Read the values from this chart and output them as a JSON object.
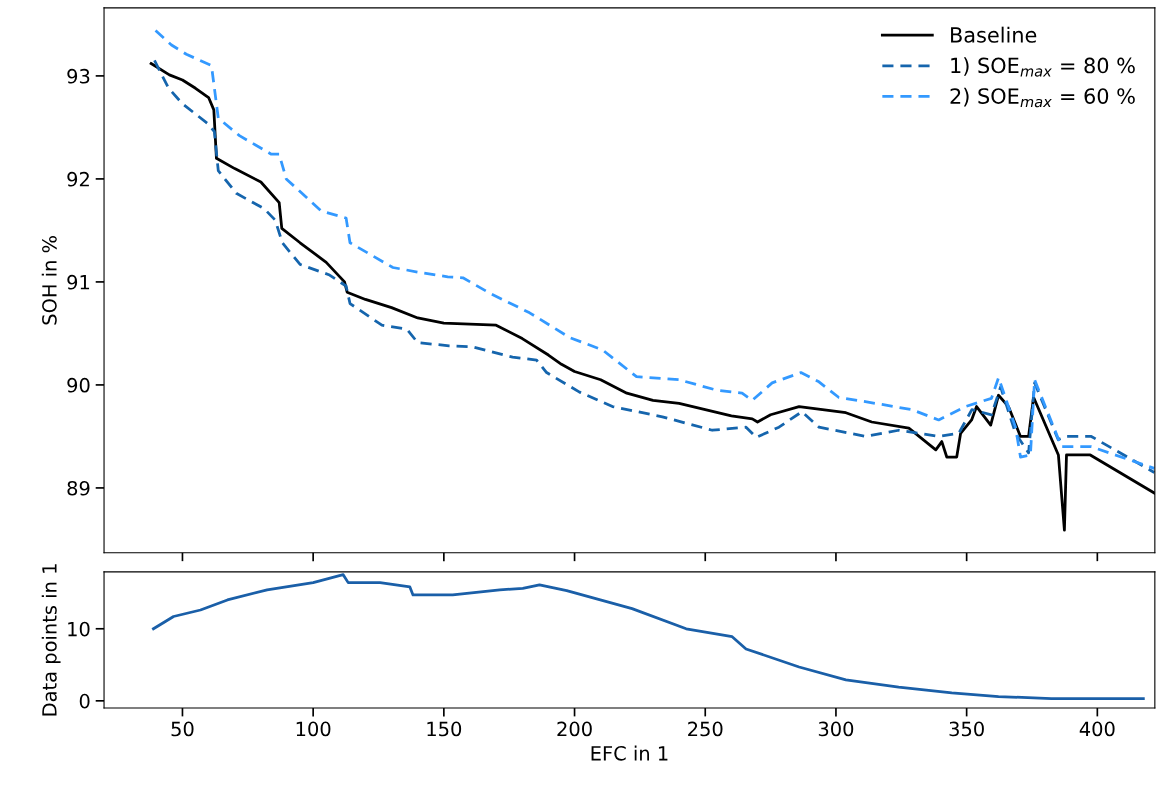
{
  "chart_data": [
    {
      "type": "line",
      "ylabel": "SOH in %",
      "xlim": [
        20,
        422
      ],
      "xticks": [
        50,
        100,
        150,
        200,
        250,
        300,
        350,
        400
      ],
      "ylim": [
        88.37,
        93.66
      ],
      "yticks": [
        89,
        90,
        91,
        92,
        93
      ],
      "tick_labels": "y",
      "grid": false,
      "legend": "top right",
      "marker": "none",
      "series": [
        {
          "name": "Baseline",
          "color": "#000000",
          "line_style": "solid",
          "x": [
            38,
            45,
            50,
            55,
            60,
            62,
            63,
            70,
            80,
            87,
            88,
            95,
            105,
            112,
            113,
            120,
            130,
            140,
            150,
            170,
            180,
            190,
            195,
            200,
            210,
            220,
            230,
            240,
            250,
            260,
            268,
            270,
            275,
            285.9,
            303.8,
            313.7,
            327.9,
            338.2,
            340.5,
            342.4,
            346.2,
            347.7,
            351.9,
            353.8,
            359.2,
            362.2,
            366,
            370.6,
            373.7,
            375.6,
            385.1,
            387.4,
            388.2,
            397.3,
            421.8
          ],
          "values": [
            93.12,
            93.01,
            92.96,
            92.88,
            92.79,
            92.67,
            92.2,
            92.1,
            91.97,
            91.77,
            91.52,
            91.38,
            91.19,
            91.0,
            90.9,
            90.83,
            90.75,
            90.65,
            90.6,
            90.58,
            90.45,
            90.29,
            90.2,
            90.13,
            90.05,
            89.92,
            89.85,
            89.82,
            89.76,
            89.7,
            89.67,
            89.64,
            89.71,
            89.79,
            89.73,
            89.64,
            89.58,
            89.37,
            89.45,
            89.3,
            89.3,
            89.53,
            89.66,
            89.79,
            89.61,
            89.9,
            89.79,
            89.5,
            89.5,
            89.88,
            89.32,
            88.59,
            89.32,
            89.32,
            88.95
          ]
        },
        {
          "name": "1) SOE$_{max}$ = 80 %",
          "color": "#1565ad",
          "line_style": "dashed",
          "x": [
            39.3,
            44.7,
            50,
            59.5,
            62.2,
            63.7,
            70.6,
            81.3,
            85.5,
            88.2,
            95,
            106,
            112.6,
            114.1,
            126.3,
            135.9,
            140,
            152,
            161,
            176.3,
            185.5,
            189.3,
            201.9,
            214.5,
            233.6,
            252.7,
            265.6,
            269.5,
            278.2,
            287,
            293.5,
            311.5,
            324,
            339.3,
            347,
            352,
            359.5,
            363,
            368.7,
            373.7,
            376,
            385,
            387.8,
            397.7,
            421.8
          ],
          "values": [
            93.15,
            92.88,
            92.73,
            92.54,
            92.46,
            92.08,
            91.86,
            91.71,
            91.6,
            91.38,
            91.17,
            91.07,
            90.96,
            90.79,
            90.58,
            90.54,
            90.41,
            90.38,
            90.37,
            90.27,
            90.24,
            90.12,
            89.93,
            89.79,
            89.69,
            89.56,
            89.59,
            89.49,
            89.59,
            89.74,
            89.59,
            89.5,
            89.56,
            89.5,
            89.53,
            89.76,
            89.71,
            89.98,
            89.53,
            89.34,
            90.02,
            89.47,
            89.5,
            89.5,
            89.15
          ]
        },
        {
          "name": "2) SOE$_{max}$ = 60 %",
          "color": "#3399ff",
          "line_style": "dashed",
          "x": [
            39.7,
            45.8,
            51.5,
            61.1,
            63.7,
            71.8,
            84,
            87,
            89.7,
            103,
            112.6,
            114.1,
            130.5,
            141.2,
            151.5,
            157.3,
            167.6,
            182.8,
            198.1,
            210.7,
            223.7,
            240,
            254.2,
            264.1,
            268,
            275.6,
            286.6,
            293.5,
            301,
            317.6,
            329,
            339.3,
            349.6,
            359.5,
            362.2,
            368.7,
            370.6,
            374.4,
            376,
            386.3,
            397.7,
            421.8
          ],
          "values": [
            93.44,
            93.3,
            93.21,
            93.1,
            92.59,
            92.42,
            92.24,
            92.24,
            92.0,
            91.69,
            91.62,
            91.38,
            91.14,
            91.09,
            91.05,
            91.04,
            90.89,
            90.7,
            90.46,
            90.34,
            90.08,
            90.05,
            89.95,
            89.92,
            89.85,
            90.02,
            90.12,
            90.03,
            89.88,
            89.81,
            89.76,
            89.66,
            89.79,
            89.87,
            90.07,
            89.59,
            89.3,
            89.32,
            90.05,
            89.4,
            89.4,
            89.19
          ]
        }
      ]
    },
    {
      "type": "line",
      "xlabel": "EFC in 1",
      "ylabel": "Data points in 1",
      "xlim": [
        20,
        422
      ],
      "xticks": [
        50,
        100,
        150,
        200,
        250,
        300,
        350,
        400
      ],
      "ylim": [
        -1,
        17.9
      ],
      "yticks": [
        0,
        10
      ],
      "grid": false,
      "marker": "none",
      "series": [
        {
          "color": "#1a5fa8",
          "line_style": "solid",
          "x": [
            38.9,
            46.6,
            56.9,
            67.2,
            82.4,
            100,
            111.5,
            113.4,
            125.6,
            137,
            138.2,
            153.4,
            171.4,
            180.2,
            186.6,
            197,
            222,
            242.7,
            260.3,
            265.6,
            285.9,
            303.8,
            324,
            344.3,
            362.2,
            382.4,
            417.6
          ],
          "values": [
            10.0,
            11.7,
            12.6,
            14.0,
            15.4,
            16.4,
            17.5,
            16.4,
            16.4,
            15.8,
            14.7,
            14.7,
            15.4,
            15.6,
            16.1,
            15.3,
            12.8,
            10.0,
            8.9,
            7.2,
            4.7,
            2.9,
            1.9,
            1.1,
            0.6,
            0.3,
            0.3
          ]
        }
      ]
    }
  ]
}
